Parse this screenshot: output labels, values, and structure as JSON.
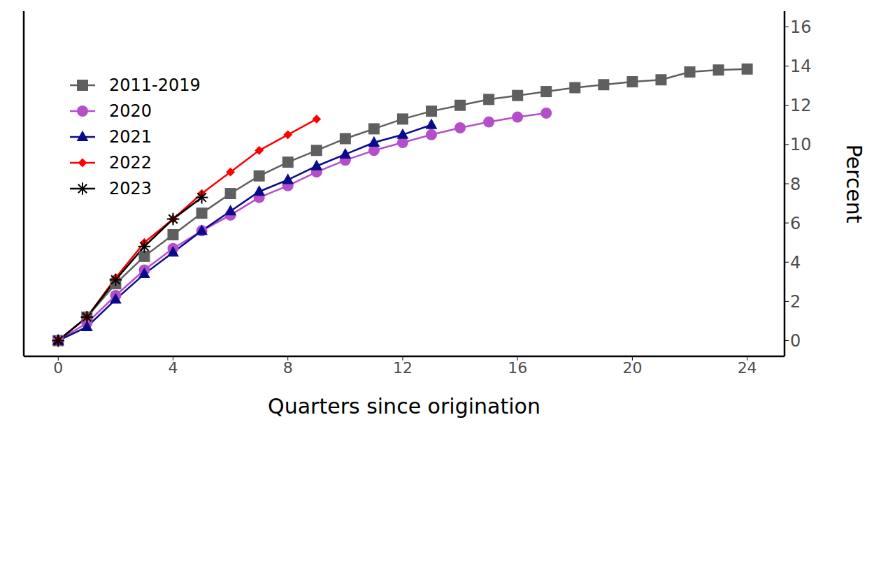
{
  "chart_data": {
    "type": "line",
    "x_label": "Quarters since origination",
    "y_label": "Percent",
    "x": [
      0,
      1,
      2,
      3,
      4,
      5,
      6,
      7,
      8,
      9,
      10,
      11,
      12,
      13,
      14,
      15,
      16,
      17,
      18,
      19,
      20,
      21,
      22,
      23,
      24
    ],
    "xlim": [
      -1.2,
      25.3
    ],
    "xticks": [
      0,
      4,
      8,
      12,
      16,
      20,
      24
    ],
    "ylim": [
      -0.8,
      16.8
    ],
    "yticks": [
      0,
      2,
      4,
      6,
      8,
      10,
      12,
      14,
      16
    ],
    "grid": false,
    "legend": "upper left",
    "series": [
      {
        "name": "2011-2019",
        "color": "#5f5f5f",
        "marker": "square",
        "values": [
          0,
          1.2,
          2.9,
          4.3,
          5.4,
          6.5,
          7.5,
          8.4,
          9.1,
          9.7,
          10.3,
          10.8,
          11.3,
          11.7,
          12.0,
          12.3,
          12.5,
          12.7,
          12.9,
          13.05,
          13.2,
          13.3,
          13.7,
          13.8,
          13.85
        ]
      },
      {
        "name": "2020",
        "color": "#b54fc9",
        "marker": "circle",
        "values": [
          0,
          0.9,
          2.3,
          3.6,
          4.7,
          5.6,
          6.4,
          7.3,
          7.9,
          8.6,
          9.2,
          9.7,
          10.1,
          10.5,
          10.85,
          11.15,
          11.4,
          11.6,
          null,
          null,
          null,
          null,
          null,
          null,
          null
        ]
      },
      {
        "name": "2021",
        "color": "#0a0a8c",
        "marker": "triangle",
        "values": [
          0,
          0.7,
          2.1,
          3.4,
          4.5,
          5.6,
          6.6,
          7.6,
          8.2,
          8.9,
          9.5,
          10.1,
          10.5,
          11.0,
          null,
          null,
          null,
          null,
          null,
          null,
          null,
          null,
          null,
          null,
          null
        ]
      },
      {
        "name": "2022",
        "color": "#ff0000",
        "marker": "diamond",
        "values": [
          0,
          1.2,
          3.2,
          5.0,
          6.2,
          7.5,
          8.6,
          9.7,
          10.5,
          11.3,
          null,
          null,
          null,
          null,
          null,
          null,
          null,
          null,
          null,
          null,
          null,
          null,
          null,
          null,
          null
        ]
      },
      {
        "name": "2023",
        "color": "#000000",
        "marker": "star",
        "values": [
          0,
          1.2,
          3.1,
          4.8,
          6.2,
          7.3,
          null,
          null,
          null,
          null,
          null,
          null,
          null,
          null,
          null,
          null,
          null,
          null,
          null,
          null,
          null,
          null,
          null,
          null,
          null
        ]
      }
    ]
  }
}
